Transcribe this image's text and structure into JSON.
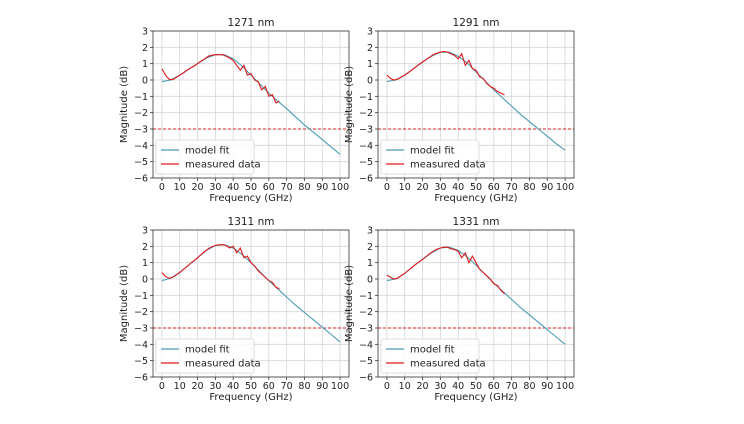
{
  "chart_data": [
    {
      "type": "line",
      "title": "1271 nm",
      "xlabel": "Frequency (GHz)",
      "ylabel": "Magnitude (dB)",
      "xlim": [
        -5,
        105
      ],
      "ylim": [
        -6,
        3
      ],
      "xticks": [
        0,
        10,
        20,
        30,
        40,
        50,
        60,
        70,
        80,
        90,
        100
      ],
      "yticks": [
        -6,
        -5,
        -4,
        -3,
        -2,
        -1,
        0,
        1,
        2,
        3
      ],
      "grid": true,
      "legend_position": "lower-left",
      "threshold": {
        "y": -3,
        "color": "#d62728",
        "style": "dashed"
      },
      "series": [
        {
          "name": "model fit",
          "color": "#4a9bb5",
          "x": [
            0,
            5,
            10,
            15,
            20,
            25,
            30,
            35,
            40,
            45,
            50,
            55,
            60,
            65,
            70,
            75,
            80,
            85,
            90,
            95,
            100
          ],
          "y": [
            -0.1,
            0,
            0.3,
            0.65,
            1.0,
            1.35,
            1.55,
            1.55,
            1.3,
            0.85,
            0.3,
            -0.25,
            -0.8,
            -1.3,
            -1.75,
            -2.25,
            -2.75,
            -3.2,
            -3.65,
            -4.1,
            -4.55
          ]
        },
        {
          "name": "measured data",
          "color": "#e01a1a",
          "x": [
            0,
            2,
            4,
            6,
            8,
            10,
            12,
            14,
            16,
            18,
            20,
            22,
            24,
            26,
            28,
            30,
            32,
            34,
            36,
            38,
            40,
            42,
            44,
            46,
            48,
            50,
            52,
            54,
            56,
            58,
            60,
            62,
            64,
            66
          ],
          "y": [
            0.7,
            0.3,
            0.05,
            0.02,
            0.15,
            0.3,
            0.43,
            0.6,
            0.73,
            0.85,
            1.0,
            1.16,
            1.3,
            1.45,
            1.52,
            1.55,
            1.55,
            1.54,
            1.45,
            1.35,
            1.2,
            0.9,
            0.6,
            0.9,
            0.3,
            0.4,
            0.0,
            -0.1,
            -0.6,
            -0.4,
            -1.0,
            -0.9,
            -1.4,
            -1.3
          ]
        }
      ]
    },
    {
      "type": "line",
      "title": "1291 nm",
      "xlabel": "Frequency (GHz)",
      "ylabel": "Magnitude (dB)",
      "xlim": [
        -5,
        105
      ],
      "ylim": [
        -6,
        3
      ],
      "xticks": [
        0,
        10,
        20,
        30,
        40,
        50,
        60,
        70,
        80,
        90,
        100
      ],
      "yticks": [
        -6,
        -5,
        -4,
        -3,
        -2,
        -1,
        0,
        1,
        2,
        3
      ],
      "grid": true,
      "legend_position": "lower-left",
      "threshold": {
        "y": -3,
        "color": "#d62728",
        "style": "dashed"
      },
      "series": [
        {
          "name": "model fit",
          "color": "#4a9bb5",
          "x": [
            0,
            5,
            10,
            15,
            20,
            25,
            30,
            35,
            40,
            45,
            50,
            55,
            60,
            65,
            70,
            75,
            80,
            85,
            90,
            95,
            100
          ],
          "y": [
            -0.1,
            0,
            0.3,
            0.7,
            1.1,
            1.45,
            1.7,
            1.7,
            1.45,
            1.05,
            0.5,
            -0.05,
            -0.6,
            -1.1,
            -1.6,
            -2.1,
            -2.55,
            -3.0,
            -3.45,
            -3.9,
            -4.3
          ]
        },
        {
          "name": "measured data",
          "color": "#e01a1a",
          "x": [
            0,
            2,
            4,
            6,
            8,
            10,
            12,
            14,
            16,
            18,
            20,
            22,
            24,
            26,
            28,
            30,
            32,
            34,
            36,
            38,
            40,
            42,
            44,
            46,
            48,
            50,
            52,
            54,
            56,
            58,
            60,
            62,
            64,
            66
          ],
          "y": [
            0.3,
            0.1,
            0,
            0.05,
            0.18,
            0.3,
            0.45,
            0.62,
            0.78,
            0.95,
            1.1,
            1.25,
            1.4,
            1.55,
            1.65,
            1.7,
            1.75,
            1.7,
            1.6,
            1.5,
            1.3,
            1.6,
            0.9,
            1.2,
            0.7,
            0.6,
            0.2,
            0.1,
            -0.2,
            -0.4,
            -0.5,
            -0.7,
            -0.8,
            -0.9
          ]
        }
      ]
    },
    {
      "type": "line",
      "title": "1311 nm",
      "xlabel": "Frequency (GHz)",
      "ylabel": "Magnitude (dB)",
      "xlim": [
        -5,
        105
      ],
      "ylim": [
        -6,
        3
      ],
      "xticks": [
        0,
        10,
        20,
        30,
        40,
        50,
        60,
        70,
        80,
        90,
        100
      ],
      "yticks": [
        -6,
        -5,
        -4,
        -3,
        -2,
        -1,
        0,
        1,
        2,
        3
      ],
      "grid": true,
      "legend_position": "lower-left",
      "threshold": {
        "y": -3,
        "color": "#d62728",
        "style": "dashed"
      },
      "series": [
        {
          "name": "model fit",
          "color": "#4a9bb5",
          "x": [
            0,
            5,
            10,
            15,
            20,
            25,
            30,
            35,
            40,
            45,
            50,
            55,
            60,
            65,
            70,
            75,
            80,
            85,
            90,
            95,
            100
          ],
          "y": [
            -0.1,
            0.05,
            0.4,
            0.85,
            1.3,
            1.75,
            2.05,
            2.1,
            1.9,
            1.5,
            1.0,
            0.45,
            -0.1,
            -0.6,
            -1.1,
            -1.6,
            -2.05,
            -2.5,
            -2.95,
            -3.4,
            -3.85
          ]
        },
        {
          "name": "measured data",
          "color": "#e01a1a",
          "x": [
            0,
            2,
            4,
            6,
            8,
            10,
            12,
            14,
            16,
            18,
            20,
            22,
            24,
            26,
            28,
            30,
            32,
            34,
            36,
            38,
            40,
            42,
            44,
            46,
            48,
            50,
            52,
            54,
            56,
            58,
            60,
            62,
            64,
            66
          ],
          "y": [
            0.4,
            0.15,
            0.05,
            0.1,
            0.25,
            0.4,
            0.58,
            0.76,
            0.95,
            1.12,
            1.3,
            1.5,
            1.68,
            1.85,
            1.98,
            2.05,
            2.1,
            2.1,
            2.05,
            1.9,
            2.0,
            1.6,
            1.9,
            1.3,
            1.4,
            1.0,
            0.8,
            0.5,
            0.3,
            0.1,
            -0.1,
            -0.2,
            -0.5,
            -0.6
          ]
        }
      ]
    },
    {
      "type": "line",
      "title": "1331 nm",
      "xlabel": "Frequency (GHz)",
      "ylabel": "Magnitude (dB)",
      "xlim": [
        -5,
        105
      ],
      "ylim": [
        -6,
        3
      ],
      "xticks": [
        0,
        10,
        20,
        30,
        40,
        50,
        60,
        70,
        80,
        90,
        100
      ],
      "yticks": [
        -6,
        -5,
        -4,
        -3,
        -2,
        -1,
        0,
        1,
        2,
        3
      ],
      "grid": true,
      "legend_position": "lower-left",
      "threshold": {
        "y": -3,
        "color": "#d62728",
        "style": "dashed"
      },
      "series": [
        {
          "name": "model fit",
          "color": "#4a9bb5",
          "x": [
            0,
            5,
            10,
            15,
            20,
            25,
            30,
            35,
            40,
            45,
            50,
            55,
            60,
            65,
            70,
            75,
            80,
            85,
            90,
            95,
            100
          ],
          "y": [
            -0.1,
            0,
            0.35,
            0.8,
            1.2,
            1.6,
            1.9,
            1.95,
            1.75,
            1.35,
            0.85,
            0.3,
            -0.25,
            -0.75,
            -1.25,
            -1.75,
            -2.2,
            -2.65,
            -3.1,
            -3.55,
            -4.0
          ]
        },
        {
          "name": "measured data",
          "color": "#e01a1a",
          "x": [
            0,
            2,
            4,
            6,
            8,
            10,
            12,
            14,
            16,
            18,
            20,
            22,
            24,
            26,
            28,
            30,
            32,
            34,
            36,
            38,
            40,
            42,
            44,
            46,
            48,
            50,
            52,
            54,
            56,
            58,
            60,
            62,
            64,
            66
          ],
          "y": [
            0.25,
            0.1,
            0,
            0.05,
            0.2,
            0.35,
            0.52,
            0.7,
            0.88,
            1.05,
            1.2,
            1.38,
            1.55,
            1.7,
            1.82,
            1.9,
            1.95,
            1.95,
            1.85,
            1.8,
            1.7,
            1.3,
            1.6,
            1.0,
            1.4,
            1.0,
            0.6,
            0.4,
            0.2,
            0,
            -0.3,
            -0.4,
            -0.7,
            -0.9
          ]
        }
      ]
    }
  ]
}
